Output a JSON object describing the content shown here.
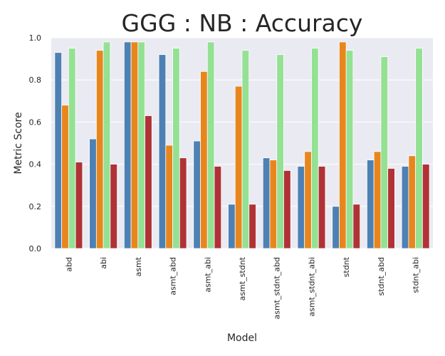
{
  "chart_data": {
    "type": "bar",
    "title": "GGG : NB : Accuracy",
    "xlabel": "Model",
    "ylabel": "Metric Score",
    "ylim": [
      0,
      1.0
    ],
    "yticks": [
      "0.0",
      "0.2",
      "0.4",
      "0.6",
      "0.8",
      "1.0"
    ],
    "grid": true,
    "categories": [
      "abd",
      "abi",
      "asmt",
      "asmt_abd",
      "asmt_abi",
      "asmt_stdnt",
      "asmt_stdnt_abd",
      "asmt_stdnt_abi",
      "stdnt",
      "stdnt_abd",
      "stdnt_abi"
    ],
    "series": [
      {
        "color": "#4e81b3",
        "values": [
          0.93,
          0.52,
          0.98,
          0.92,
          0.51,
          0.21,
          0.43,
          0.39,
          0.2,
          0.42,
          0.39
        ]
      },
      {
        "color": "#e8861e",
        "values": [
          0.68,
          0.94,
          0.98,
          0.49,
          0.84,
          0.77,
          0.42,
          0.46,
          0.98,
          0.46,
          0.44
        ]
      },
      {
        "color": "#94e194",
        "values": [
          0.95,
          0.98,
          0.98,
          0.95,
          0.98,
          0.94,
          0.92,
          0.95,
          0.94,
          0.91,
          0.95
        ]
      },
      {
        "color": "#b03236",
        "values": [
          0.41,
          0.4,
          0.63,
          0.43,
          0.39,
          0.21,
          0.37,
          0.39,
          0.21,
          0.38,
          0.4
        ]
      }
    ]
  }
}
